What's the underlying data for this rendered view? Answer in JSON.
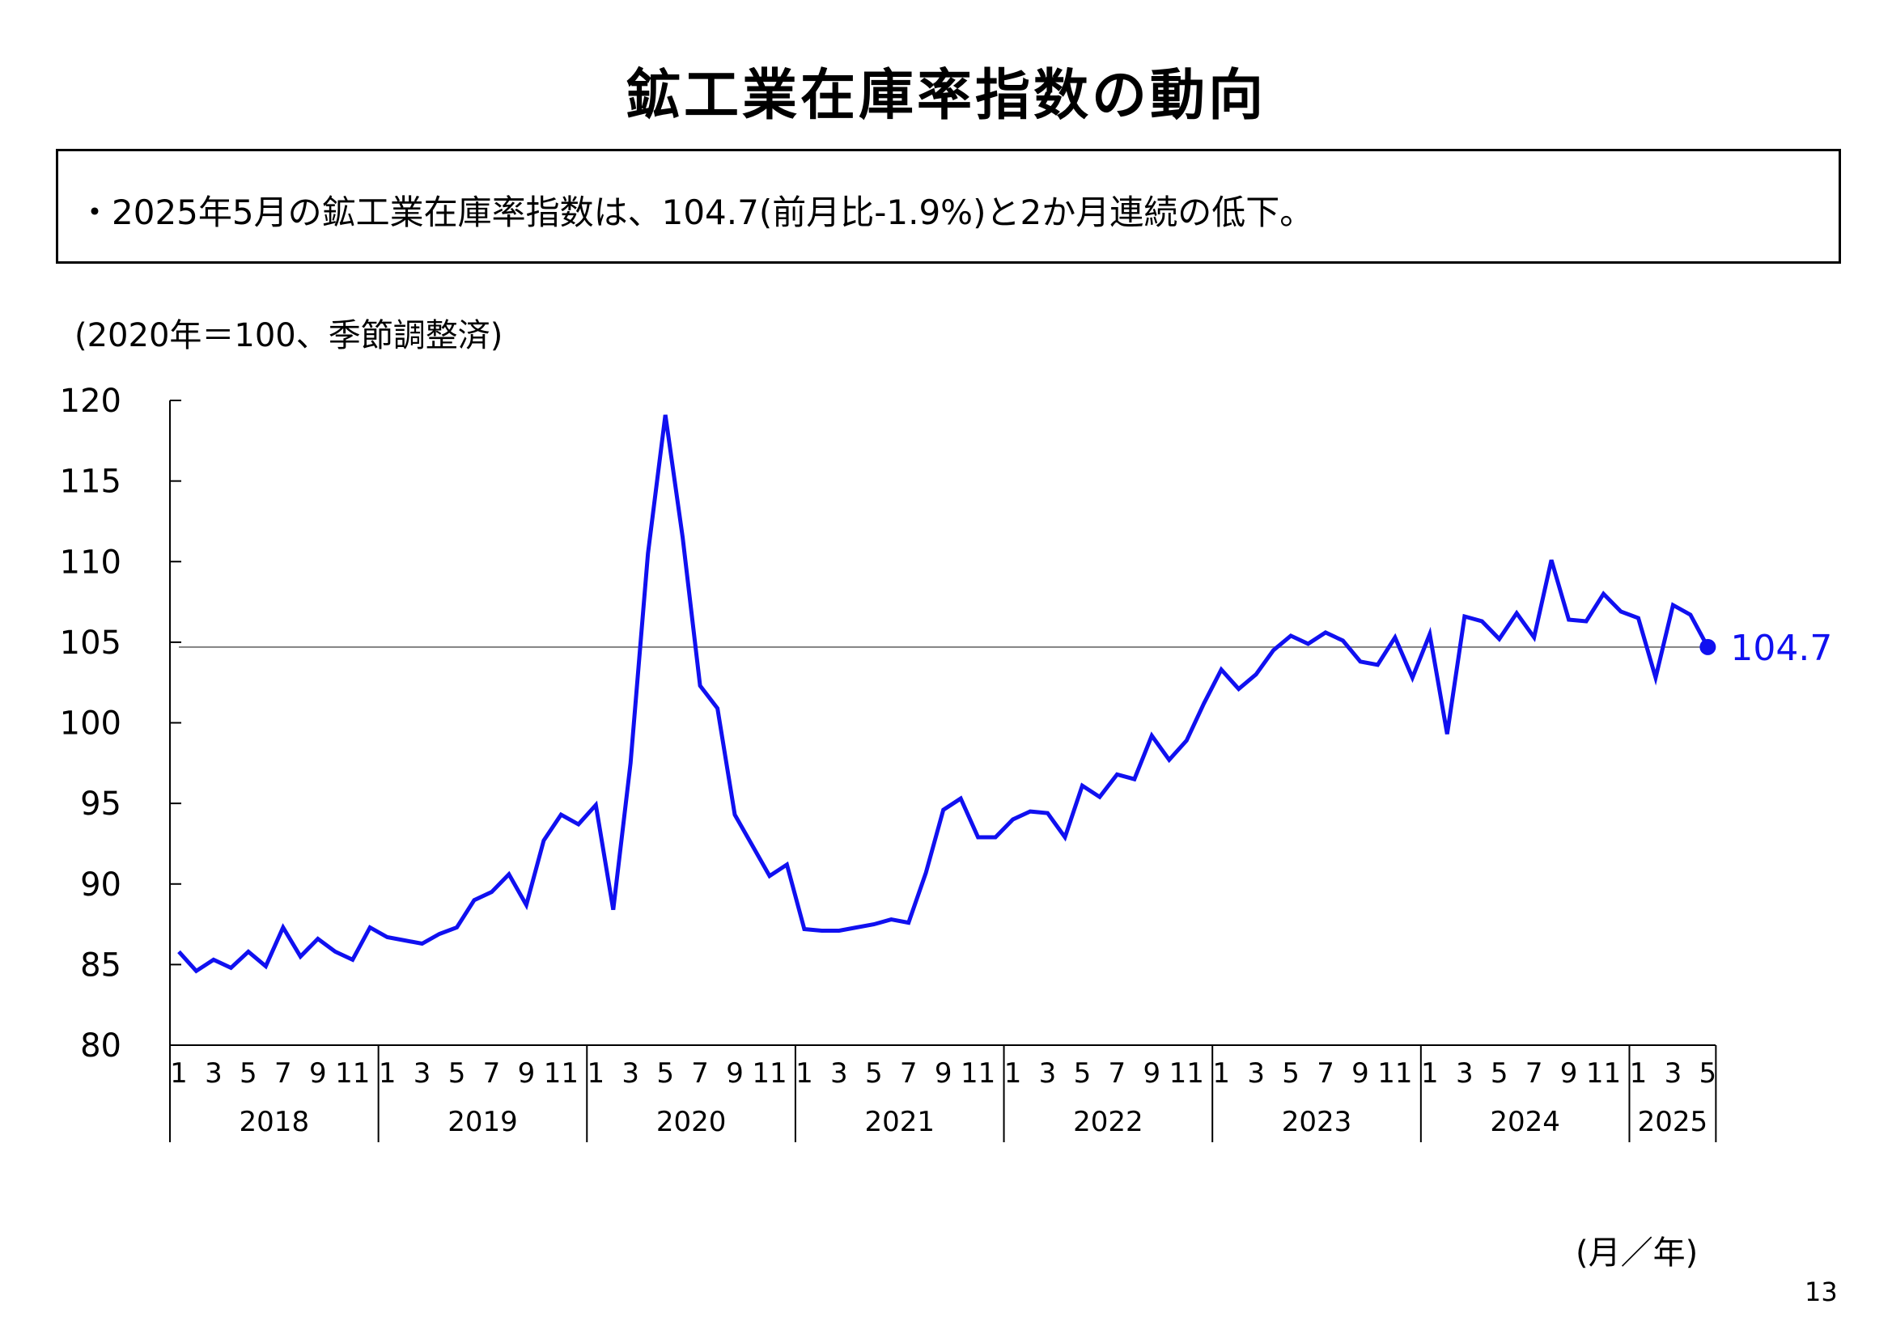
{
  "title": "鉱工業在庫率指数の動向",
  "summary": "・2025年5月の鉱工業在庫率指数は、104.7(前月比-1.9%)と2か月連続の低下。",
  "unit_note": "(2020年＝100、季節調整済)",
  "axis_unit": "(月／年)",
  "page_number": "13",
  "colors": {
    "series": "#1010f0",
    "reference_line": "#808080",
    "axis": "#000000"
  },
  "chart_data": {
    "type": "line",
    "title": "",
    "xlabel": "(月／年)",
    "ylabel": "(2020年＝100、季節調整済)",
    "ylim": [
      80,
      120
    ],
    "yticks": [
      "120",
      "115",
      "110",
      "105",
      "100",
      "95",
      "90",
      "85",
      "80"
    ],
    "grid": false,
    "years": [
      {
        "label": "2018",
        "months": 12
      },
      {
        "label": "2019",
        "months": 12
      },
      {
        "label": "2020",
        "months": 12
      },
      {
        "label": "2021",
        "months": 12
      },
      {
        "label": "2022",
        "months": 12
      },
      {
        "label": "2023",
        "months": 12
      },
      {
        "label": "2024",
        "months": 12
      },
      {
        "label": "2025",
        "months": 5
      }
    ],
    "month_tick_labels": [
      "1",
      "3",
      "5",
      "7",
      "9",
      "11"
    ],
    "reference_line": 104.7,
    "last_value_label": "104.7",
    "series": [
      {
        "values": [
          85.8,
          84.6,
          85.3,
          84.8,
          85.8,
          84.9,
          87.3,
          85.5,
          86.6,
          85.8,
          85.3,
          87.3,
          86.7,
          86.5,
          86.3,
          86.9,
          87.3,
          89.0,
          89.5,
          90.6,
          88.7,
          92.7,
          94.3,
          93.7,
          94.9,
          88.4,
          97.5,
          110.5,
          119.1,
          111.5,
          102.3,
          100.9,
          94.3,
          92.4,
          90.5,
          91.2,
          87.2,
          87.1,
          87.1,
          87.3,
          87.5,
          87.8,
          87.6,
          90.7,
          94.6,
          95.3,
          92.9,
          92.9,
          94.0,
          94.5,
          94.4,
          92.9,
          96.1,
          95.4,
          96.8,
          96.5,
          99.2,
          97.7,
          98.9,
          101.2,
          103.3,
          102.1,
          103.0,
          104.5,
          105.4,
          104.9,
          105.6,
          105.1,
          103.8,
          103.6,
          105.3,
          102.8,
          105.5,
          99.3,
          106.6,
          106.3,
          105.2,
          106.8,
          105.3,
          110.1,
          106.4,
          106.3,
          108.0,
          106.9,
          106.5,
          102.8,
          107.3,
          106.7,
          104.7
        ]
      }
    ]
  }
}
